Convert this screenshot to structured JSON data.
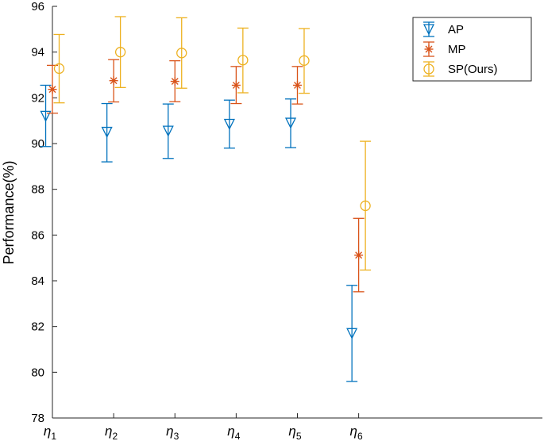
{
  "chart_data": {
    "type": "errorbar",
    "title": "",
    "xlabel": "",
    "ylabel": "Performance(%)",
    "ylim": [
      78,
      96
    ],
    "yticks": [
      78,
      80,
      82,
      84,
      86,
      88,
      90,
      92,
      94,
      96
    ],
    "grid": false,
    "legend_position": "top-right",
    "categories": [
      {
        "symbol": "η",
        "sub": "1"
      },
      {
        "symbol": "η",
        "sub": "2"
      },
      {
        "symbol": "η",
        "sub": "3"
      },
      {
        "symbol": "η",
        "sub": "4"
      },
      {
        "symbol": "η",
        "sub": "5"
      },
      {
        "symbol": "η",
        "sub": "6"
      }
    ],
    "series": [
      {
        "name": "AP",
        "marker": "triangle-down",
        "color": "#0072BD",
        "values": [
          91.2,
          90.5,
          90.55,
          90.85,
          90.9,
          81.7
        ],
        "lower": [
          89.87,
          89.2,
          89.35,
          89.8,
          89.82,
          79.6
        ],
        "upper": [
          92.55,
          91.75,
          91.73,
          91.9,
          91.95,
          83.8
        ]
      },
      {
        "name": "MP",
        "marker": "asterisk",
        "color": "#D95319",
        "values": [
          92.37,
          92.75,
          92.72,
          92.55,
          92.55,
          85.12
        ],
        "lower": [
          91.33,
          91.82,
          91.83,
          91.75,
          91.73,
          83.52
        ],
        "upper": [
          93.42,
          93.67,
          93.62,
          93.37,
          93.37,
          86.73
        ]
      },
      {
        "name": "SP(Ours)",
        "marker": "circle",
        "color": "#EDB120",
        "values": [
          93.28,
          94.0,
          93.96,
          93.65,
          93.63,
          87.28
        ],
        "lower": [
          91.78,
          92.45,
          92.42,
          92.22,
          92.2,
          84.47
        ],
        "upper": [
          94.77,
          95.55,
          95.5,
          95.05,
          95.03,
          90.1
        ]
      }
    ]
  }
}
